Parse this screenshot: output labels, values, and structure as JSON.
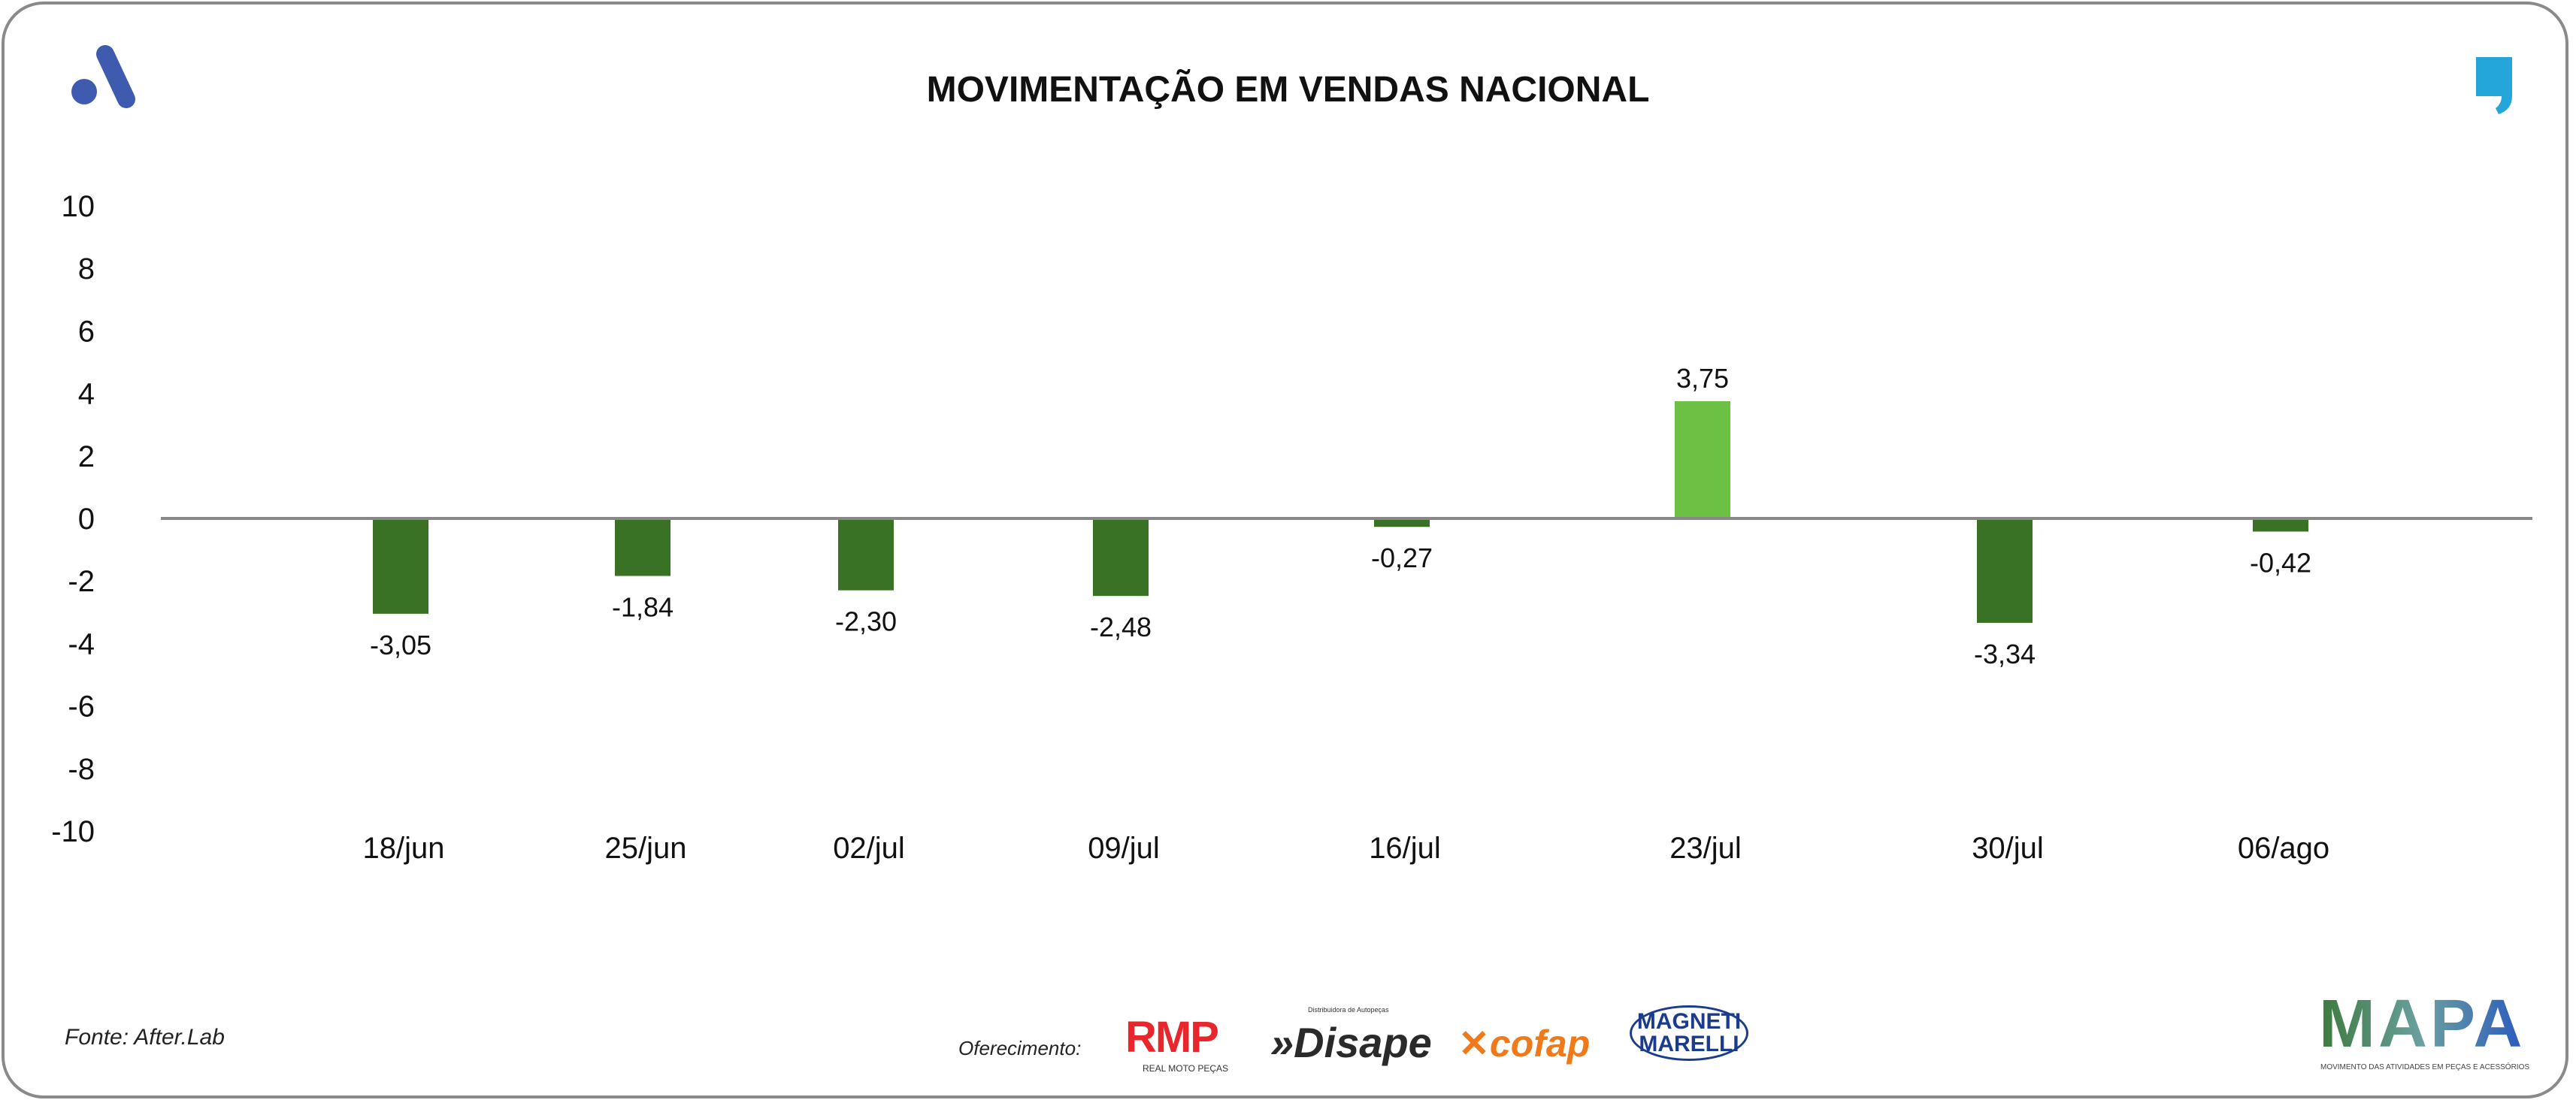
{
  "title": "MOVIMENTAÇÃO EM VENDAS NACIONAL",
  "source": "Fonte: After.Lab",
  "sponsor_label": "Oferecimento:",
  "sponsors": [
    "RMP",
    "Disape",
    "cofap",
    "MAGNETI MARELLI"
  ],
  "sponsor_subtexts": {
    "rmp": "REAL MOTO PEÇAS",
    "disape": "Distribuidora de Autopeças"
  },
  "brand": {
    "name": "MAPA",
    "tagline": "MOVIMENTO DAS ATIVIDADES EM PEÇAS E ACESSÓRIOS"
  },
  "colors": {
    "negative": "#3a7225",
    "positive": "#6cc043",
    "logo_a": "#3f5bb0",
    "logo_quote": "#25a6da"
  },
  "chart_data": {
    "type": "bar",
    "title": "MOVIMENTAÇÃO EM VENDAS NACIONAL",
    "categories": [
      "18/jun",
      "25/jun",
      "02/jul",
      "09/jul",
      "16/jul",
      "23/jul",
      "30/jul",
      "06/ago"
    ],
    "values": [
      -3.05,
      -1.84,
      -2.3,
      -2.48,
      -0.27,
      3.75,
      -3.34,
      -0.42
    ],
    "labels": [
      "-3,05",
      "-1,84",
      "-2,30",
      "-2,48",
      "-0,27",
      "3,75",
      "-3,34",
      "-0,42"
    ],
    "yticks": [
      10,
      8,
      6,
      4,
      2,
      0,
      -2,
      -4,
      -6,
      -8,
      -10
    ],
    "ylim": [
      -10,
      10
    ],
    "xlabel": "",
    "ylabel": "",
    "grid": false,
    "legend": "none"
  }
}
